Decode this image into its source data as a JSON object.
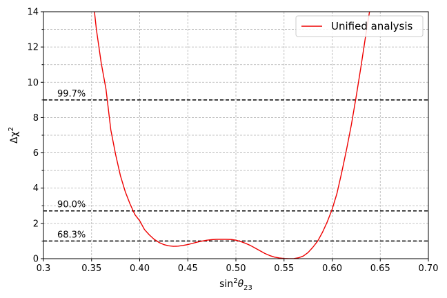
{
  "chart_data": {
    "type": "line",
    "xlabel_base": "sin",
    "xlabel_sup": "2",
    "xlabel_theta": "θ",
    "xlabel_sub": "23",
    "ylabel_base": "Δχ",
    "ylabel_sup": "2",
    "xlim": [
      0.3,
      0.7
    ],
    "ylim": [
      0,
      14
    ],
    "x_ticks": [
      0.3,
      0.35,
      0.4,
      0.45,
      0.5,
      0.55,
      0.6,
      0.65,
      0.7
    ],
    "x_tick_labels": [
      "0.3",
      "0.35",
      "0.40",
      "0.45",
      "0.50",
      "0.55",
      "0.60",
      "0.65",
      "0.70"
    ],
    "y_ticks": [
      0,
      2,
      4,
      6,
      8,
      10,
      12,
      14
    ],
    "y_tick_labels": [
      "0",
      "2",
      "4",
      "6",
      "8",
      "10",
      "12",
      "14"
    ],
    "y_minor_ticks": [
      1,
      3,
      5,
      7,
      9,
      11,
      13
    ],
    "grid": true,
    "legend_position": "top-right",
    "series": [
      {
        "name": "Unified analysis",
        "color": "#ee0000",
        "x": [
          0.35,
          0.355,
          0.36,
          0.365,
          0.37,
          0.375,
          0.38,
          0.385,
          0.39,
          0.395,
          0.4,
          0.405,
          0.41,
          0.415,
          0.42,
          0.425,
          0.43,
          0.435,
          0.44,
          0.445,
          0.45,
          0.455,
          0.46,
          0.465,
          0.47,
          0.475,
          0.48,
          0.485,
          0.49,
          0.495,
          0.5,
          0.505,
          0.51,
          0.515,
          0.52,
          0.525,
          0.53,
          0.535,
          0.54,
          0.545,
          0.55,
          0.555,
          0.56,
          0.565,
          0.57,
          0.575,
          0.58,
          0.585,
          0.59,
          0.595,
          0.6,
          0.605,
          0.61,
          0.615,
          0.62,
          0.625,
          0.63,
          0.635,
          0.64,
          0.645
        ],
        "y": [
          15.5,
          13.0,
          11.1,
          9.6,
          7.3,
          5.9,
          4.7,
          3.8,
          3.1,
          2.5,
          2.15,
          1.65,
          1.35,
          1.1,
          0.92,
          0.8,
          0.73,
          0.7,
          0.71,
          0.75,
          0.8,
          0.87,
          0.94,
          1.0,
          1.05,
          1.08,
          1.1,
          1.1,
          1.1,
          1.09,
          1.05,
          0.97,
          0.87,
          0.75,
          0.6,
          0.45,
          0.3,
          0.18,
          0.09,
          0.04,
          0.01,
          0.0,
          0.0,
          0.05,
          0.15,
          0.35,
          0.65,
          1.0,
          1.5,
          2.1,
          2.8,
          3.7,
          4.9,
          6.2,
          7.6,
          9.2,
          10.9,
          12.7,
          14.4,
          16.0
        ]
      }
    ],
    "annotations": [
      {
        "text": "99.7%",
        "x": 0.31,
        "y": 9.0
      },
      {
        "text": "90.0%",
        "x": 0.31,
        "y": 2.71
      },
      {
        "text": "68.3%",
        "x": 0.31,
        "y": 1.0
      }
    ],
    "hlines": [
      9.0,
      2.71,
      1.0
    ]
  }
}
